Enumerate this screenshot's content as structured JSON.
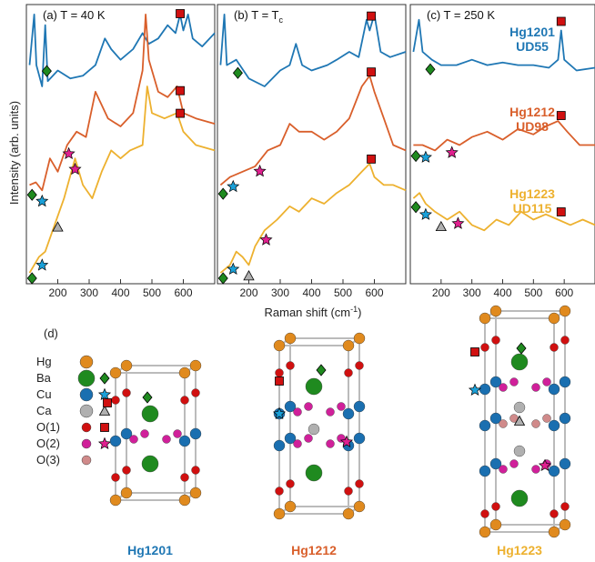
{
  "colors": {
    "hg1201": "#1f77b4",
    "hg1212": "#d95f2b",
    "hg1223": "#edb12f",
    "Hg": "#e08a1e",
    "Ba": "#1f8a1f",
    "Cu": "#1a6fb0",
    "Ca": "#b0b0b0",
    "O1": "#d01010",
    "O2": "#d0209a",
    "O3": "#d08a8a"
  },
  "ylabel": "Intensity (arb. units)",
  "xlabel": "Raman shift (cm",
  "xlabel_sup": "-1",
  "xlabel_end": ")",
  "panels": [
    {
      "id": "a",
      "title": "(a) T = 40 K",
      "xlim": [
        100,
        700
      ],
      "xticks": [
        200,
        300,
        400,
        500,
        600
      ]
    },
    {
      "id": "b",
      "title": "(b) T = T",
      "title_sub": "c",
      "xlim": [
        100,
        700
      ],
      "xticks": [
        200,
        300,
        400,
        500,
        600
      ]
    },
    {
      "id": "c",
      "title": "(c) T = 250 K",
      "xlim": [
        100,
        700
      ],
      "xticks": [
        200,
        300,
        400,
        500,
        600
      ]
    }
  ],
  "samples": [
    {
      "name": "Hg1201",
      "doping": "UD55",
      "color": "hg1201"
    },
    {
      "name": "Hg1212",
      "doping": "UD98",
      "color": "hg1212"
    },
    {
      "name": "Hg1223",
      "doping": "UD115",
      "color": "hg1223"
    }
  ],
  "chart_data": {
    "type": "line",
    "ylabel": "Intensity (arb. units)",
    "xlabel": "Raman shift (cm-1)",
    "xlim": [
      100,
      700
    ],
    "panels": [
      {
        "title": "(a) T = 40 K",
        "series": [
          {
            "name": "Hg1201",
            "points": [
              [
                110,
                0.8
              ],
              [
                125,
                0.99
              ],
              [
                132,
                0.8
              ],
              [
                150,
                0.72
              ],
              [
                160,
                0.95
              ],
              [
                168,
                0.74
              ],
              [
                200,
                0.78
              ],
              [
                240,
                0.75
              ],
              [
                280,
                0.76
              ],
              [
                320,
                0.8
              ],
              [
                350,
                0.9
              ],
              [
                370,
                0.86
              ],
              [
                400,
                0.82
              ],
              [
                440,
                0.86
              ],
              [
                470,
                0.92
              ],
              [
                490,
                0.88
              ],
              [
                520,
                0.9
              ],
              [
                550,
                0.95
              ],
              [
                575,
                0.92
              ],
              [
                590,
                0.99
              ],
              [
                600,
                0.93
              ],
              [
                615,
                0.99
              ],
              [
                630,
                0.9
              ],
              [
                660,
                0.87
              ],
              [
                700,
                0.92
              ]
            ]
          },
          {
            "name": "Hg1212",
            "points": [
              [
                110,
                0.35
              ],
              [
                130,
                0.36
              ],
              [
                150,
                0.33
              ],
              [
                175,
                0.45
              ],
              [
                200,
                0.4
              ],
              [
                230,
                0.5
              ],
              [
                260,
                0.55
              ],
              [
                290,
                0.53
              ],
              [
                320,
                0.7
              ],
              [
                360,
                0.6
              ],
              [
                400,
                0.57
              ],
              [
                440,
                0.62
              ],
              [
                470,
                0.78
              ],
              [
                480,
                0.99
              ],
              [
                490,
                0.82
              ],
              [
                520,
                0.7
              ],
              [
                550,
                0.68
              ],
              [
                580,
                0.72
              ],
              [
                600,
                0.62
              ],
              [
                640,
                0.6
              ],
              [
                700,
                0.58
              ]
            ]
          },
          {
            "name": "Hg1223",
            "points": [
              [
                110,
                0.02
              ],
              [
                140,
                0.08
              ],
              [
                160,
                0.1
              ],
              [
                190,
                0.2
              ],
              [
                220,
                0.3
              ],
              [
                255,
                0.45
              ],
              [
                280,
                0.35
              ],
              [
                310,
                0.3
              ],
              [
                340,
                0.4
              ],
              [
                370,
                0.48
              ],
              [
                400,
                0.45
              ],
              [
                430,
                0.48
              ],
              [
                470,
                0.5
              ],
              [
                485,
                0.72
              ],
              [
                500,
                0.62
              ],
              [
                540,
                0.6
              ],
              [
                580,
                0.62
              ],
              [
                600,
                0.55
              ],
              [
                640,
                0.5
              ],
              [
                700,
                0.48
              ]
            ]
          }
        ],
        "markers": [
          {
            "shape": "square",
            "series": "Hg1201",
            "x": 590
          },
          {
            "shape": "square",
            "series": "Hg1212",
            "x": 590
          },
          {
            "shape": "square",
            "series": "Hg1223",
            "x": 590
          },
          {
            "shape": "diamond",
            "series": "Hg1201",
            "x": 165
          },
          {
            "shape": "diamond",
            "series": "Hg1212",
            "x": 118
          },
          {
            "shape": "star-cu",
            "series": "Hg1212",
            "x": 150
          },
          {
            "shape": "star-o2",
            "series": "Hg1212",
            "x": 235
          },
          {
            "shape": "diamond",
            "series": "Hg1223",
            "x": 118
          },
          {
            "shape": "star-cu",
            "series": "Hg1223",
            "x": 150
          },
          {
            "shape": "triangle",
            "series": "Hg1223",
            "x": 200
          },
          {
            "shape": "star-o2",
            "series": "Hg1223",
            "x": 255
          }
        ]
      },
      {
        "title": "(b) T = Tc",
        "series": [
          {
            "name": "Hg1201",
            "points": [
              [
                110,
                0.8
              ],
              [
                122,
                0.99
              ],
              [
                130,
                0.8
              ],
              [
                160,
                0.82
              ],
              [
                200,
                0.75
              ],
              [
                250,
                0.72
              ],
              [
                300,
                0.78
              ],
              [
                330,
                0.8
              ],
              [
                350,
                0.88
              ],
              [
                370,
                0.8
              ],
              [
                400,
                0.78
              ],
              [
                450,
                0.8
              ],
              [
                480,
                0.82
              ],
              [
                520,
                0.85
              ],
              [
                550,
                0.83
              ],
              [
                575,
                0.97
              ],
              [
                585,
                0.93
              ],
              [
                600,
                0.99
              ],
              [
                620,
                0.85
              ],
              [
                650,
                0.83
              ],
              [
                700,
                0.85
              ]
            ]
          },
          {
            "name": "Hg1212",
            "points": [
              [
                110,
                0.35
              ],
              [
                140,
                0.38
              ],
              [
                180,
                0.4
              ],
              [
                220,
                0.42
              ],
              [
                260,
                0.48
              ],
              [
                300,
                0.5
              ],
              [
                330,
                0.58
              ],
              [
                360,
                0.55
              ],
              [
                400,
                0.55
              ],
              [
                440,
                0.52
              ],
              [
                480,
                0.55
              ],
              [
                520,
                0.6
              ],
              [
                560,
                0.72
              ],
              [
                585,
                0.76
              ],
              [
                600,
                0.7
              ],
              [
                630,
                0.6
              ],
              [
                660,
                0.5
              ],
              [
                700,
                0.48
              ]
            ]
          },
          {
            "name": "Hg1223",
            "points": [
              [
                110,
                0.02
              ],
              [
                140,
                0.05
              ],
              [
                160,
                0.1
              ],
              [
                180,
                0.08
              ],
              [
                200,
                0.05
              ],
              [
                220,
                0.12
              ],
              [
                250,
                0.18
              ],
              [
                290,
                0.22
              ],
              [
                330,
                0.27
              ],
              [
                360,
                0.25
              ],
              [
                400,
                0.3
              ],
              [
                440,
                0.28
              ],
              [
                480,
                0.32
              ],
              [
                520,
                0.35
              ],
              [
                560,
                0.4
              ],
              [
                585,
                0.43
              ],
              [
                600,
                0.38
              ],
              [
                630,
                0.35
              ],
              [
                660,
                0.35
              ],
              [
                700,
                0.33
              ]
            ]
          }
        ],
        "markers": [
          {
            "shape": "square",
            "series": "Hg1201",
            "x": 590
          },
          {
            "shape": "square",
            "series": "Hg1212",
            "x": 590
          },
          {
            "shape": "square",
            "series": "Hg1223",
            "x": 590
          },
          {
            "shape": "diamond",
            "series": "Hg1201",
            "x": 165
          },
          {
            "shape": "diamond",
            "series": "Hg1212",
            "x": 118
          },
          {
            "shape": "star-cu",
            "series": "Hg1212",
            "x": 150
          },
          {
            "shape": "star-o2",
            "series": "Hg1212",
            "x": 235
          },
          {
            "shape": "diamond",
            "series": "Hg1223",
            "x": 118
          },
          {
            "shape": "star-cu",
            "series": "Hg1223",
            "x": 150
          },
          {
            "shape": "triangle",
            "series": "Hg1223",
            "x": 200
          },
          {
            "shape": "star-o2",
            "series": "Hg1223",
            "x": 255
          }
        ]
      },
      {
        "title": "(c) T = 250 K",
        "series": [
          {
            "name": "Hg1201",
            "points": [
              [
                110,
                0.85
              ],
              [
                128,
                0.97
              ],
              [
                140,
                0.85
              ],
              [
                170,
                0.82
              ],
              [
                200,
                0.8
              ],
              [
                250,
                0.8
              ],
              [
                300,
                0.82
              ],
              [
                350,
                0.8
              ],
              [
                400,
                0.81
              ],
              [
                450,
                0.8
              ],
              [
                500,
                0.8
              ],
              [
                550,
                0.79
              ],
              [
                580,
                0.82
              ],
              [
                590,
                0.93
              ],
              [
                600,
                0.82
              ],
              [
                640,
                0.78
              ],
              [
                700,
                0.79
              ]
            ]
          },
          {
            "name": "Hg1212",
            "points": [
              [
                110,
                0.5
              ],
              [
                140,
                0.5
              ],
              [
                180,
                0.48
              ],
              [
                220,
                0.52
              ],
              [
                260,
                0.5
              ],
              [
                300,
                0.53
              ],
              [
                350,
                0.55
              ],
              [
                400,
                0.52
              ],
              [
                450,
                0.56
              ],
              [
                500,
                0.54
              ],
              [
                540,
                0.57
              ],
              [
                580,
                0.59
              ],
              [
                610,
                0.55
              ],
              [
                650,
                0.5
              ],
              [
                700,
                0.5
              ]
            ]
          },
          {
            "name": "Hg1223",
            "points": [
              [
                110,
                0.3
              ],
              [
                130,
                0.32
              ],
              [
                150,
                0.28
              ],
              [
                180,
                0.25
              ],
              [
                220,
                0.22
              ],
              [
                260,
                0.25
              ],
              [
                300,
                0.2
              ],
              [
                340,
                0.18
              ],
              [
                380,
                0.22
              ],
              [
                420,
                0.2
              ],
              [
                460,
                0.25
              ],
              [
                500,
                0.22
              ],
              [
                540,
                0.24
              ],
              [
                580,
                0.22
              ],
              [
                620,
                0.2
              ],
              [
                660,
                0.22
              ],
              [
                700,
                0.2
              ]
            ]
          }
        ],
        "markers": [
          {
            "shape": "diamond",
            "series": "Hg1201",
            "x": 165
          },
          {
            "shape": "square",
            "series": "Hg1201",
            "x": 590
          },
          {
            "shape": "diamond",
            "series": "Hg1212",
            "x": 118
          },
          {
            "shape": "star-cu",
            "series": "Hg1212",
            "x": 150
          },
          {
            "shape": "star-o2",
            "series": "Hg1212",
            "x": 235
          },
          {
            "shape": "square",
            "series": "Hg1212",
            "x": 590
          },
          {
            "shape": "diamond",
            "series": "Hg1223",
            "x": 118
          },
          {
            "shape": "star-cu",
            "series": "Hg1223",
            "x": 150
          },
          {
            "shape": "triangle",
            "series": "Hg1223",
            "x": 200
          },
          {
            "shape": "star-o2",
            "series": "Hg1223",
            "x": 255
          },
          {
            "shape": "square",
            "series": "Hg1223",
            "x": 590
          }
        ]
      }
    ]
  },
  "structure": {
    "label": "(d)",
    "legend": [
      {
        "label": "Hg",
        "color": "Hg",
        "marker": ""
      },
      {
        "label": "Ba",
        "color": "Ba",
        "marker": "diamond"
      },
      {
        "label": "Cu",
        "color": "Cu",
        "marker": "star-cu"
      },
      {
        "label": "Ca",
        "color": "Ca",
        "marker": "triangle"
      },
      {
        "label": "O(1)",
        "color": "O1",
        "marker": "square"
      },
      {
        "label": "O(2)",
        "color": "O2",
        "marker": "star-o2"
      },
      {
        "label": "O(3)",
        "color": "O3",
        "marker": ""
      }
    ],
    "names": [
      "Hg1201",
      "Hg1212",
      "Hg1223"
    ]
  }
}
